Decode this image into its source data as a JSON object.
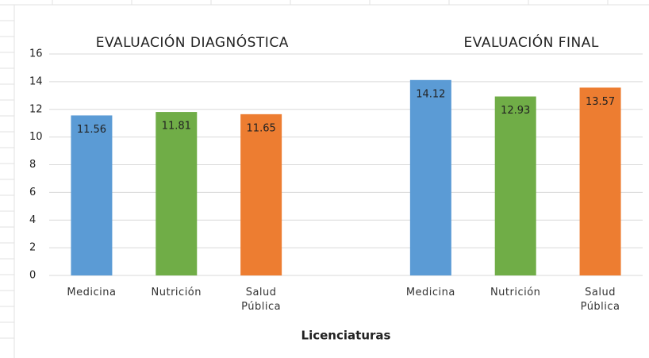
{
  "chart_data": {
    "type": "bar",
    "xlabel": "Licenciaturas",
    "categories": [
      "Medicina",
      "Nutrición",
      "Salud Pública",
      null,
      "Medicina",
      "Nutrición",
      "Salud Pública"
    ],
    "values": [
      11.56,
      11.81,
      11.65,
      null,
      14.12,
      12.93,
      13.57
    ],
    "colors": [
      "#5b9bd5",
      "#70ad47",
      "#ed7d31",
      null,
      "#5b9bd5",
      "#70ad47",
      "#ed7d31"
    ],
    "group_titles": [
      "EVALUACIÓN DIAGNÓSTICA",
      "EVALUACIÓN FINAL"
    ],
    "ylim": [
      0,
      16
    ],
    "yticks": [
      0,
      2,
      4,
      6,
      8,
      10,
      12,
      14,
      16
    ],
    "grid": true
  }
}
